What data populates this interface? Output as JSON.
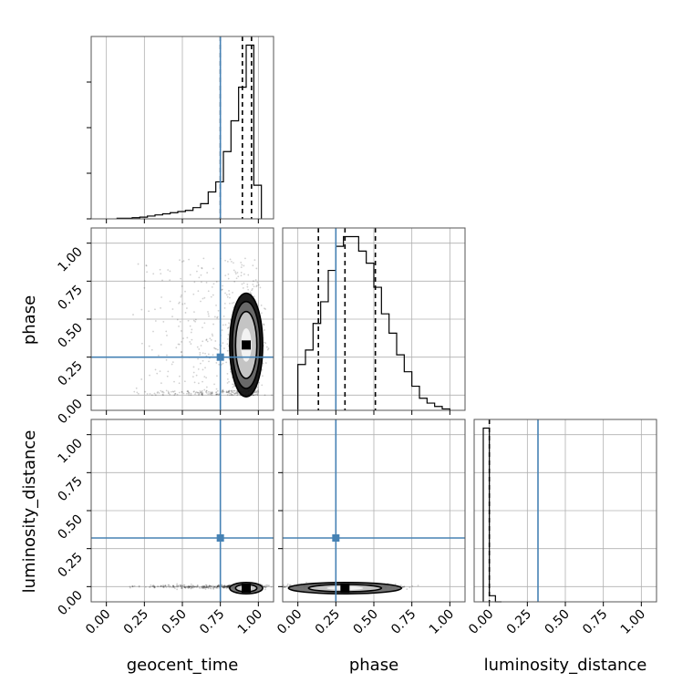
{
  "chart_data": {
    "type": "corner",
    "parameters": [
      "geocent_time",
      "phase",
      "luminosity_distance"
    ],
    "tick_values": [
      0.0,
      0.25,
      0.5,
      0.75,
      1.0
    ],
    "tick_labels": [
      "0.00",
      "0.25",
      "0.50",
      "0.75",
      "1.00"
    ],
    "axis_range": [
      -0.1,
      1.1
    ],
    "axis_ranges": {
      "geocent_time": [
        -0.1,
        1.1
      ],
      "phase": [
        -0.1,
        1.1
      ],
      "luminosity_distance": [
        -0.1,
        1.1
      ]
    },
    "grid": true,
    "truth_values": {
      "geocent_time": 0.75,
      "phase": 0.25,
      "luminosity_distance": 0.32
    },
    "truth_color": "#4682b4",
    "histogram_color": "#000000",
    "histograms": [
      {
        "parameter": "geocent_time",
        "bin_edges": [
          0.07,
          0.12,
          0.17,
          0.22,
          0.27,
          0.32,
          0.37,
          0.42,
          0.47,
          0.52,
          0.57,
          0.62,
          0.67,
          0.72,
          0.77,
          0.82,
          0.87,
          0.92,
          0.97,
          1.02
        ],
        "counts": [
          1,
          1,
          2,
          3,
          5,
          7,
          9,
          11,
          13,
          15,
          20,
          27,
          48,
          66,
          120,
          175,
          235,
          310,
          60
        ],
        "quantiles": [
          0.75,
          0.895,
          0.955
        ]
      },
      {
        "parameter": "phase",
        "bin_edges": [
          0.0,
          0.05,
          0.1,
          0.15,
          0.2,
          0.25,
          0.3,
          0.35,
          0.4,
          0.45,
          0.5,
          0.55,
          0.6,
          0.65,
          0.7,
          0.75,
          0.8,
          0.85,
          0.9,
          0.95,
          1.0
        ],
        "counts": [
          95,
          125,
          180,
          225,
          290,
          340,
          360,
          360,
          330,
          305,
          255,
          200,
          160,
          115,
          80,
          50,
          25,
          15,
          8,
          3
        ],
        "quantiles": [
          0.135,
          0.31,
          0.51
        ]
      },
      {
        "parameter": "luminosity_distance",
        "bin_edges": [
          -0.04,
          0.0,
          0.04,
          0.08
        ],
        "counts": [
          1000,
          35,
          0
        ],
        "quantiles": [
          0.0
        ]
      }
    ],
    "density_2d": [
      {
        "x": "geocent_time",
        "y": "phase",
        "center": [
          0.92,
          0.33
        ],
        "sigma": [
          0.035,
          0.11
        ],
        "levels": [
          1.0,
          2.0,
          2.6,
          3.1
        ],
        "scatter_note": "sparse gray samples spread over x 0.1–1.0, y 0.0–0.95"
      },
      {
        "x": "geocent_time",
        "y": "luminosity_distance",
        "center": [
          0.92,
          -0.01
        ],
        "sigma": [
          0.035,
          0.012
        ],
        "levels": [
          1.0,
          2.0,
          3.1
        ],
        "scatter_note": "thin band of samples along y ≈ 0 for x 0.1–1.0"
      },
      {
        "x": "phase",
        "y": "luminosity_distance",
        "center": [
          0.31,
          -0.01
        ],
        "sigma": [
          0.12,
          0.012
        ],
        "levels": [
          1.0,
          2.0,
          3.1
        ],
        "scatter_note": "band of samples along y ≈ 0 for x 0.0–0.95"
      }
    ]
  }
}
